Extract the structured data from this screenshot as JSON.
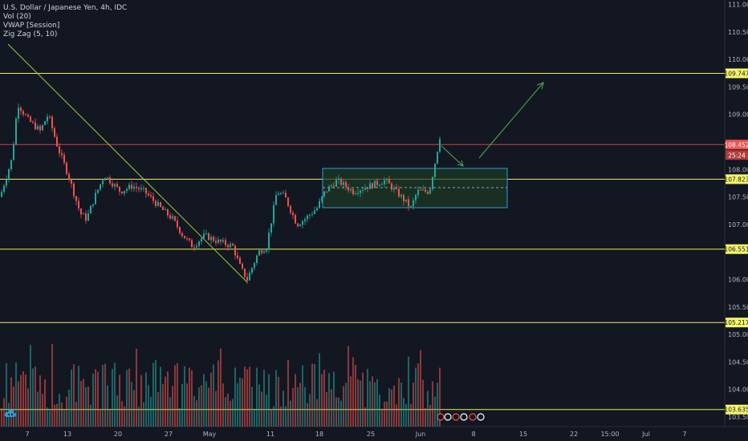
{
  "legend": {
    "title": "U.S. Dollar / Japanese Yen, 4h, IDC",
    "indicators": [
      "Vol (20)",
      "VWAP [Session]",
      "Zig Zag (5, 10)"
    ]
  },
  "price_axis": {
    "ticks": [
      "111.000",
      "110.500",
      "110.000",
      "109.500",
      "109.000",
      "108.000",
      "107.500",
      "107.000",
      "106.000",
      "105.500",
      "105.000",
      "104.500",
      "104.000",
      "103.500"
    ],
    "levels": [
      {
        "value": 109.747,
        "label": "109.747",
        "color": "#f5f56a"
      },
      {
        "value": 108.452,
        "label": "108.452",
        "color": "#ef5350"
      },
      {
        "value": 107.823,
        "label": "107.823",
        "color": "#f5f56a"
      },
      {
        "value": 106.551,
        "label": "106.551",
        "color": "#f5f56a"
      },
      {
        "value": 105.217,
        "label": "105.217",
        "color": "#f5f56a"
      },
      {
        "value": 103.635,
        "label": "103.635",
        "color": "#f5f56a"
      }
    ],
    "countdown": "25:24"
  },
  "time_axis": {
    "labels": [
      "7",
      "13",
      "20",
      "27",
      "May",
      "11",
      "18",
      "25",
      "Jun",
      "8",
      "15",
      "22",
      "15:00",
      "Jul",
      "7"
    ]
  },
  "colors": {
    "background": "#131722",
    "up": "#26a69a",
    "down": "#ef5350",
    "level": "#f5f56a",
    "trendline": "#9acd32",
    "channel": "#2a9fd6",
    "channel_fill": "#1e3b24",
    "arrow": "#4caf50",
    "axis_text": "#b2b5be"
  },
  "icons": {
    "logo": "tradingview-cloud-icon",
    "events": "earnings-event-icons"
  }
}
